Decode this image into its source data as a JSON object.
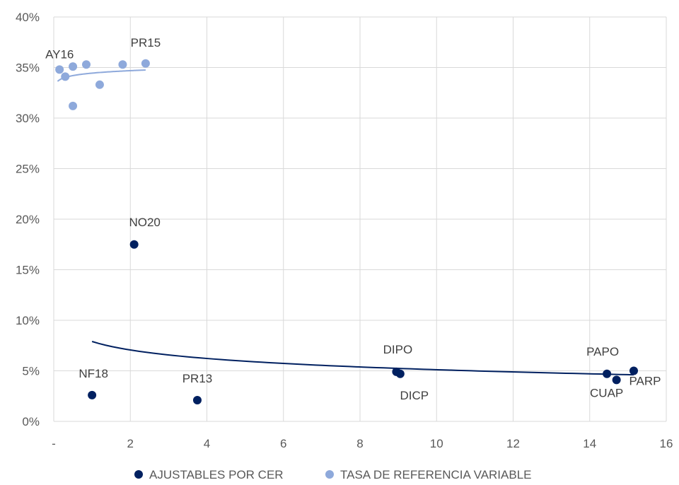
{
  "chart_data": {
    "type": "scatter",
    "title": "",
    "xlabel": "",
    "ylabel": "",
    "xlim": [
      0,
      16
    ],
    "ylim": [
      0,
      0.4
    ],
    "x_ticks": [
      "-",
      "2",
      "4",
      "6",
      "8",
      "10",
      "12",
      "14",
      "16"
    ],
    "y_ticks": [
      "0%",
      "5%",
      "10%",
      "15%",
      "20%",
      "25%",
      "30%",
      "35%",
      "40%"
    ],
    "grid": true,
    "legend_position": "bottom",
    "series": [
      {
        "name": "AJUSTABLES POR CER",
        "color": "#002060",
        "points": [
          {
            "x": 2.1,
            "y": 0.175,
            "label": "NO20"
          },
          {
            "x": 1.0,
            "y": 0.026,
            "label": "NF18"
          },
          {
            "x": 3.75,
            "y": 0.021,
            "label": "PR13"
          },
          {
            "x": 8.95,
            "y": 0.049,
            "label": "DIPO"
          },
          {
            "x": 9.05,
            "y": 0.047,
            "label": "DICP"
          },
          {
            "x": 14.45,
            "y": 0.047,
            "label": "PAPO"
          },
          {
            "x": 14.7,
            "y": 0.041,
            "label": "CUAP"
          },
          {
            "x": 15.15,
            "y": 0.05,
            "label": "PARP"
          }
        ],
        "trendline": {
          "type": "logarithmic",
          "x_range": [
            1.0,
            15.15
          ]
        }
      },
      {
        "name": "TASA DE REFERENCIA VARIABLE",
        "color": "#8EA9DB",
        "points": [
          {
            "x": 0.15,
            "y": 0.348,
            "label": ""
          },
          {
            "x": 0.3,
            "y": 0.341,
            "label": "AY16"
          },
          {
            "x": 0.5,
            "y": 0.351,
            "label": ""
          },
          {
            "x": 0.5,
            "y": 0.312,
            "label": ""
          },
          {
            "x": 0.85,
            "y": 0.353,
            "label": ""
          },
          {
            "x": 1.2,
            "y": 0.333,
            "label": ""
          },
          {
            "x": 1.8,
            "y": 0.353,
            "label": ""
          },
          {
            "x": 2.4,
            "y": 0.354,
            "label": "PR15"
          }
        ],
        "trendline": {
          "type": "logarithmic",
          "x_range": [
            0.1,
            2.4
          ]
        }
      }
    ]
  }
}
